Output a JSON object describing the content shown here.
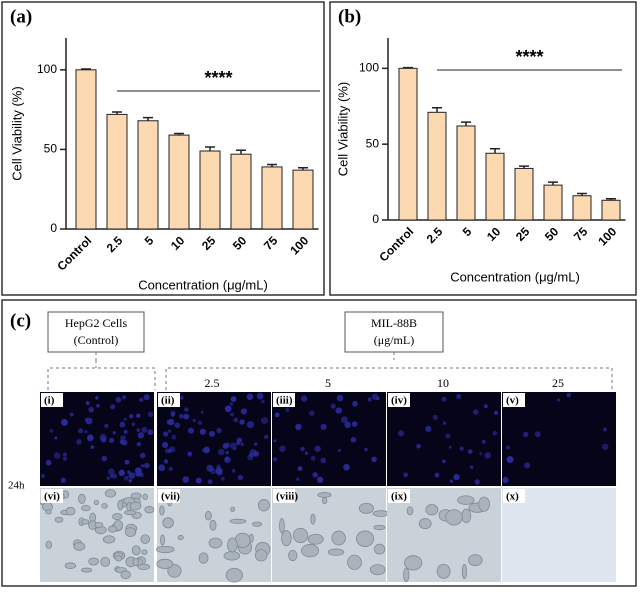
{
  "chart_data": [
    {
      "type": "bar",
      "panel_label": "(a)",
      "y_label": "Cell Viability (%)",
      "x_label": "Concentration (μg/mL)",
      "categories": [
        "Control",
        "2.5",
        "5",
        "10",
        "25",
        "50",
        "75",
        "100"
      ],
      "values": [
        100,
        72,
        68,
        59,
        49,
        47,
        39,
        37
      ],
      "errors": [
        0.5,
        1.5,
        2,
        1,
        2.5,
        2.5,
        1.5,
        1.5
      ],
      "color": "#fcd9b0",
      "ylim": [
        0,
        120
      ],
      "yticks": [
        0,
        50,
        100
      ],
      "annotation": "****"
    },
    {
      "type": "bar",
      "panel_label": "(b)",
      "y_label": "Cell Viability (%)",
      "x_label": "Concentration (μg/mL)",
      "categories": [
        "Control",
        "2.5",
        "5",
        "10",
        "25",
        "50",
        "75",
        "100"
      ],
      "values": [
        100,
        71,
        62,
        44,
        34,
        23,
        16,
        13
      ],
      "errors": [
        0.5,
        3,
        2.5,
        3,
        1.5,
        2,
        1.5,
        1
      ],
      "color": "#fcd9b0",
      "ylim": [
        0,
        120
      ],
      "yticks": [
        0,
        50,
        100
      ],
      "annotation": "****"
    }
  ],
  "panel_c": {
    "panel_label": "(c)",
    "control_label": [
      "HepG2 Cells",
      "(Control)"
    ],
    "treatment_label": [
      "MIL-88B",
      "(μg/mL)"
    ],
    "concentrations": [
      "2.5",
      "5",
      "10",
      "25"
    ],
    "time": "24h",
    "image_labels": [
      "(i)",
      "(ii)",
      "(iii)",
      "(iv)",
      "(v)",
      "(vi)",
      "(vii)",
      "(viii)",
      "(ix)",
      "(x)"
    ]
  }
}
